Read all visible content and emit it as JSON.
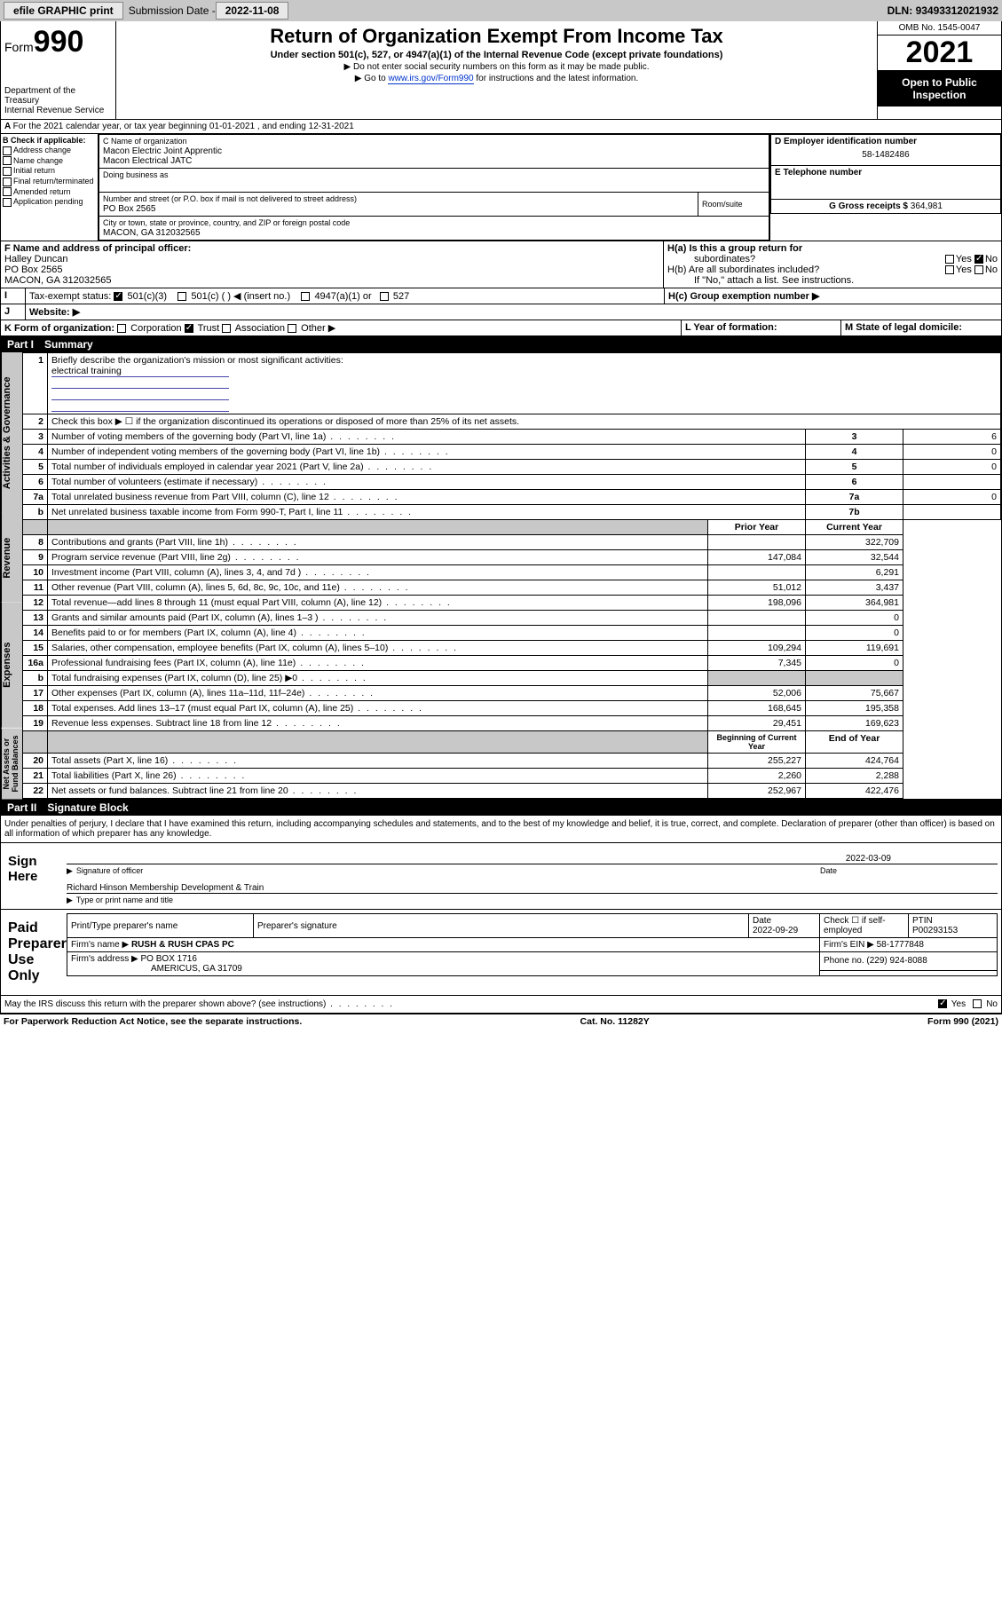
{
  "topbar": {
    "efile": "efile GRAPHIC print",
    "sub_lbl": "Submission Date - ",
    "sub_date": "2022-11-08",
    "dln_lbl": "DLN: ",
    "dln": "93493312021932"
  },
  "header": {
    "form_pre": "Form",
    "form_num": "990",
    "dept": "Department of the Treasury",
    "irs": "Internal Revenue Service",
    "title": "Return of Organization Exempt From Income Tax",
    "sub": "Under section 501(c), 527, or 4947(a)(1) of the Internal Revenue Code (except private foundations)",
    "note1": "▶ Do not enter social security numbers on this form as it may be made public.",
    "note2_pre": "▶ Go to ",
    "note2_link": "www.irs.gov/Form990",
    "note2_post": " for instructions and the latest information.",
    "omb": "OMB No. 1545-0047",
    "year": "2021",
    "open": "Open to Public",
    "insp": "Inspection"
  },
  "a": {
    "text": "For the 2021 calendar year, or tax year beginning 01-01-2021   , and ending 12-31-2021"
  },
  "b": {
    "hdr": "B Check if applicable:",
    "opts": [
      "Address change",
      "Name change",
      "Initial return",
      "Final return/terminated",
      "Amended return",
      "Application pending"
    ]
  },
  "c": {
    "lbl": "C Name of organization",
    "l1": "Macon Electric Joint Apprentic",
    "l2": "Macon Electrical JATC",
    "dba": "Doing business as",
    "addr_lbl": "Number and street (or P.O. box if mail is not delivered to street address)",
    "addr": "PO Box 2565",
    "room": "Room/suite",
    "city_lbl": "City or town, state or province, country, and ZIP or foreign postal code",
    "city": "MACON, GA  312032565"
  },
  "d": {
    "lbl": "D Employer identification number",
    "v": "58-1482486"
  },
  "e": {
    "lbl": "E Telephone number"
  },
  "g": {
    "lbl": "G Gross receipts $ ",
    "v": "364,981"
  },
  "f": {
    "lbl": "F  Name and address of principal officer:",
    "n": "Halley Duncan",
    "a1": "PO Box 2565",
    "a2": "MACON, GA  312032565"
  },
  "h": {
    "a": "H(a)  Is this a group return for",
    "a2": "subordinates?",
    "b": "H(b)  Are all subordinates included?",
    "bnote": "If \"No,\" attach a list. See instructions.",
    "c": "H(c)  Group exemption number ▶",
    "yes": "Yes",
    "no": "No"
  },
  "i": {
    "lbl": "Tax-exempt status:",
    "o1": "501(c)(3)",
    "o2": "501(c) (  ) ◀ (insert no.)",
    "o3": "4947(a)(1) or",
    "o4": "527"
  },
  "j": {
    "lbl": "Website: ▶"
  },
  "k": {
    "lbl": "K Form of organization:",
    "o1": "Corporation",
    "o2": "Trust",
    "o3": "Association",
    "o4": "Other ▶"
  },
  "l": {
    "lbl": "L Year of formation:"
  },
  "m": {
    "lbl": "M State of legal domicile:"
  },
  "p1": {
    "num": "Part I",
    "title": "Summary",
    "line1": "Briefly describe the organization's mission or most significant activities:",
    "mission": "electrical training",
    "line2": "Check this box ▶ ☐  if the organization discontinued its operations or disposed of more than 25% of its net assets.",
    "rows_top": [
      {
        "n": "3",
        "t": "Number of voting members of the governing body (Part VI, line 1a)",
        "box": "3",
        "v": "6"
      },
      {
        "n": "4",
        "t": "Number of independent voting members of the governing body (Part VI, line 1b)",
        "box": "4",
        "v": "0"
      },
      {
        "n": "5",
        "t": "Total number of individuals employed in calendar year 2021 (Part V, line 2a)",
        "box": "5",
        "v": "0"
      },
      {
        "n": "6",
        "t": "Total number of volunteers (estimate if necessary)",
        "box": "6",
        "v": ""
      },
      {
        "n": "7a",
        "t": "Total unrelated business revenue from Part VIII, column (C), line 12",
        "box": "7a",
        "v": "0"
      },
      {
        "n": "b",
        "t": "Net unrelated business taxable income from Form 990-T, Part I, line 11",
        "box": "7b",
        "v": ""
      }
    ],
    "hdr_prior": "Prior Year",
    "hdr_curr": "Current Year",
    "rev": [
      {
        "n": "8",
        "t": "Contributions and grants (Part VIII, line 1h)",
        "p": "",
        "c": "322,709"
      },
      {
        "n": "9",
        "t": "Program service revenue (Part VIII, line 2g)",
        "p": "147,084",
        "c": "32,544"
      },
      {
        "n": "10",
        "t": "Investment income (Part VIII, column (A), lines 3, 4, and 7d )",
        "p": "",
        "c": "6,291"
      },
      {
        "n": "11",
        "t": "Other revenue (Part VIII, column (A), lines 5, 6d, 8c, 9c, 10c, and 11e)",
        "p": "51,012",
        "c": "3,437"
      },
      {
        "n": "12",
        "t": "Total revenue—add lines 8 through 11 (must equal Part VIII, column (A), line 12)",
        "p": "198,096",
        "c": "364,981"
      }
    ],
    "exp": [
      {
        "n": "13",
        "t": "Grants and similar amounts paid (Part IX, column (A), lines 1–3 )",
        "p": "",
        "c": "0"
      },
      {
        "n": "14",
        "t": "Benefits paid to or for members (Part IX, column (A), line 4)",
        "p": "",
        "c": "0"
      },
      {
        "n": "15",
        "t": "Salaries, other compensation, employee benefits (Part IX, column (A), lines 5–10)",
        "p": "109,294",
        "c": "119,691"
      },
      {
        "n": "16a",
        "t": "Professional fundraising fees (Part IX, column (A), line 11e)",
        "p": "7,345",
        "c": "0"
      },
      {
        "n": "b",
        "t": "Total fundraising expenses (Part IX, column (D), line 25) ▶0",
        "p": "sh",
        "c": "sh"
      },
      {
        "n": "17",
        "t": "Other expenses (Part IX, column (A), lines 11a–11d, 11f–24e)",
        "p": "52,006",
        "c": "75,667"
      },
      {
        "n": "18",
        "t": "Total expenses. Add lines 13–17 (must equal Part IX, column (A), line 25)",
        "p": "168,645",
        "c": "195,358"
      },
      {
        "n": "19",
        "t": "Revenue less expenses. Subtract line 18 from line 12",
        "p": "29,451",
        "c": "169,623"
      }
    ],
    "hdr_beg": "Beginning of Current Year",
    "hdr_end": "End of Year",
    "na": [
      {
        "n": "20",
        "t": "Total assets (Part X, line 16)",
        "p": "255,227",
        "c": "424,764"
      },
      {
        "n": "21",
        "t": "Total liabilities (Part X, line 26)",
        "p": "2,260",
        "c": "2,288"
      },
      {
        "n": "22",
        "t": "Net assets or fund balances. Subtract line 21 from line 20",
        "p": "252,967",
        "c": "422,476"
      }
    ],
    "band_ag": "Activities & Governance",
    "band_rev": "Revenue",
    "band_exp": "Expenses",
    "band_na": "Net Assets or Fund Balances"
  },
  "p2": {
    "num": "Part II",
    "title": "Signature Block",
    "pen": "Under penalties of perjury, I declare that I have examined this return, including accompanying schedules and statements, and to the best of my knowledge and belief, it is true, correct, and complete. Declaration of preparer (other than officer) is based on all information of which preparer has any knowledge.",
    "sign": "Sign Here",
    "sigoff": "Signature of officer",
    "date": "Date",
    "sigdate": "2022-03-09",
    "name": "Richard Hinson Membership Development & Train",
    "namel": "Type or print name and title",
    "paid": "Paid Preparer Use Only",
    "pt": "Print/Type preparer's name",
    "ps": "Preparer's signature",
    "pd": "Date",
    "pdv": "2022-09-29",
    "chkif": "Check ☐ if self-employed",
    "ptin": "PTIN",
    "ptinv": "P00293153",
    "fn": "Firm's name   ▶",
    "fnv": "RUSH & RUSH CPAS PC",
    "fein": "Firm's EIN ▶",
    "feinv": "58-1777848",
    "fa": "Firm's address ▶",
    "fav1": "PO BOX 1716",
    "fav2": "AMERICUS, GA  31709",
    "ph": "Phone no.",
    "phv": "(229) 924-8088",
    "may": "May the IRS discuss this return with the preparer shown above? (see instructions)",
    "yes": "Yes",
    "no": "No"
  },
  "foot": {
    "l": "For Paperwork Reduction Act Notice, see the separate instructions.",
    "c": "Cat. No. 11282Y",
    "r": "Form 990 (2021)"
  }
}
